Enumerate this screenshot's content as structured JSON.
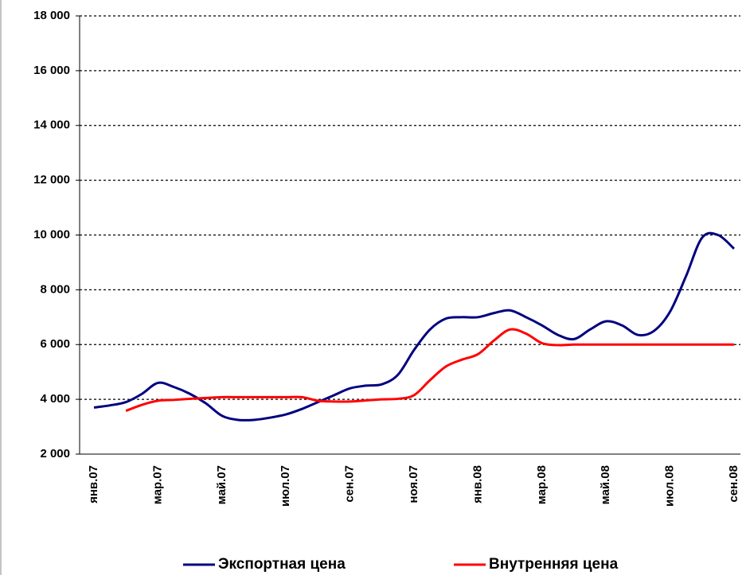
{
  "chart_data": {
    "type": "line",
    "categories": [
      "янв.07",
      null,
      null,
      null,
      "мар.07",
      null,
      null,
      null,
      "май.07",
      null,
      null,
      null,
      "июл.07",
      null,
      null,
      null,
      "сен.07",
      null,
      null,
      null,
      "ноя.07",
      null,
      null,
      null,
      "янв.08",
      null,
      null,
      null,
      "мар.08",
      null,
      null,
      null,
      "май.08",
      null,
      null,
      null,
      "июл.08",
      null,
      null,
      null,
      "сен.08"
    ],
    "series": [
      {
        "name": "Экспортная цена",
        "color": "#000080",
        "values": [
          3700,
          3780,
          3900,
          4200,
          4600,
          4450,
          4200,
          3850,
          3400,
          3250,
          3250,
          3330,
          3450,
          3650,
          3900,
          4150,
          4400,
          4500,
          4550,
          4900,
          5800,
          6550,
          6950,
          7000,
          7000,
          7150,
          7250,
          7000,
          6700,
          6350,
          6200,
          6550,
          6850,
          6700,
          6350,
          6500,
          7200,
          8500,
          9900,
          10000,
          9500
        ]
      },
      {
        "name": "Внутренняя цена",
        "color": "#ff0000",
        "values": [
          null,
          null,
          3580,
          3800,
          3950,
          3980,
          4020,
          4050,
          4080,
          4080,
          4080,
          4080,
          4080,
          4080,
          3950,
          3920,
          3920,
          3960,
          4000,
          4020,
          4150,
          4700,
          5200,
          5450,
          5650,
          6150,
          6550,
          6400,
          6050,
          5980,
          6000,
          6000,
          6000,
          6000,
          6000,
          6000,
          6000,
          6000,
          6000,
          6000,
          6000
        ]
      }
    ],
    "ylim": [
      2000,
      18000
    ],
    "yticks": [
      {
        "value": 2000,
        "label": "2 000"
      },
      {
        "value": 4000,
        "label": "4 000"
      },
      {
        "value": 6000,
        "label": "6 000"
      },
      {
        "value": 8000,
        "label": "8 000"
      },
      {
        "value": 10000,
        "label": "10 000"
      },
      {
        "value": 12000,
        "label": "12 000"
      },
      {
        "value": 14000,
        "label": "14 000"
      },
      {
        "value": 16000,
        "label": "16 000"
      },
      {
        "value": 18000,
        "label": "18 000"
      }
    ],
    "grid": true,
    "legend": "bottom"
  }
}
